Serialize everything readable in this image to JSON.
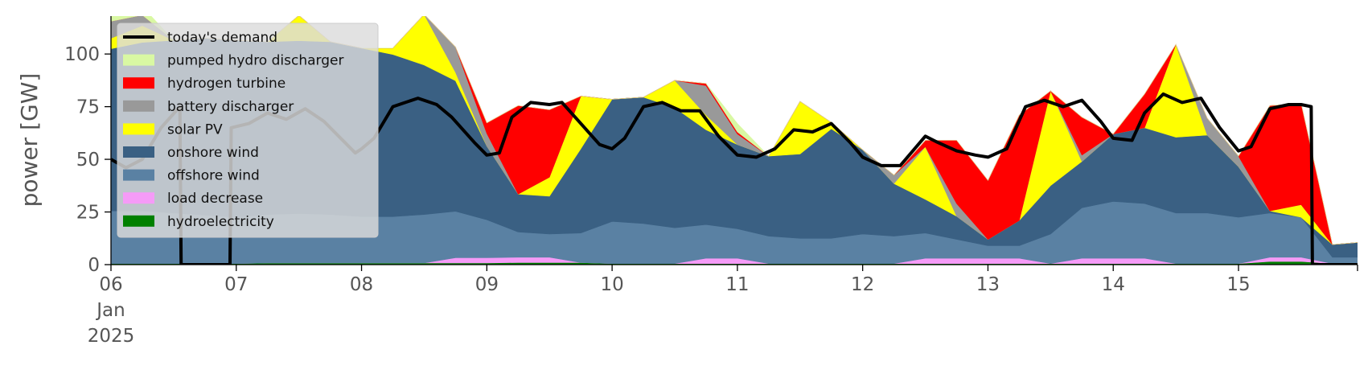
{
  "chart_data": {
    "type": "area",
    "stacked": true,
    "ylabel": "power [GW]",
    "ylim": [
      0,
      118
    ],
    "xlim_days": [
      "06",
      "15.95"
    ],
    "yticks": [
      0,
      25,
      50,
      75,
      100
    ],
    "xticks": [
      {
        "label": "06",
        "sub1": "Jan",
        "sub2": "2025"
      },
      {
        "label": "07"
      },
      {
        "label": "08"
      },
      {
        "label": "09"
      },
      {
        "label": "10"
      },
      {
        "label": "11"
      },
      {
        "label": "12"
      },
      {
        "label": "13"
      },
      {
        "label": "14"
      },
      {
        "label": "15"
      }
    ],
    "grid": false,
    "legend_placement": "top-left",
    "x": [
      6.0,
      6.25,
      6.5,
      6.75,
      7.0,
      7.25,
      7.5,
      7.75,
      8.0,
      8.25,
      8.5,
      8.75,
      9.0,
      9.25,
      9.5,
      9.75,
      10.0,
      10.25,
      10.5,
      10.75,
      11.0,
      11.25,
      11.5,
      11.75,
      12.0,
      12.25,
      12.5,
      12.75,
      13.0,
      13.25,
      13.5,
      13.75,
      14.0,
      14.25,
      14.5,
      14.75,
      15.0,
      15.25,
      15.5,
      15.75,
      15.95
    ],
    "series": [
      {
        "name": "hydroelectricity",
        "color": "#008000",
        "values": [
          0.5,
          0.5,
          0.5,
          0.5,
          0.5,
          0.8,
          0.8,
          0.8,
          0.8,
          0.8,
          0.8,
          0.8,
          0.8,
          1,
          1,
          1,
          0.5,
          0.5,
          0.5,
          0.5,
          0.5,
          0.5,
          0.5,
          0.5,
          0.5,
          0.5,
          0.5,
          0.5,
          0.5,
          0.5,
          0.5,
          0.5,
          0.5,
          0.5,
          0.5,
          0.5,
          0.5,
          1.5,
          1.5,
          0.5,
          0.5
        ]
      },
      {
        "name": "load decrease",
        "color": "#f59bf7",
        "values": [
          0,
          0,
          0,
          0,
          0,
          0,
          0,
          0,
          0,
          0,
          0,
          2.5,
          2.5,
          2.5,
          2.5,
          0,
          0,
          0,
          0,
          2.5,
          2.5,
          0,
          0,
          0,
          0,
          0,
          2.5,
          2.5,
          2.5,
          2.5,
          0,
          2.5,
          2.5,
          2.5,
          0,
          0,
          0,
          2,
          2,
          0,
          0
        ]
      },
      {
        "name": "offshore wind",
        "color": "#5a81a3",
        "values": [
          25,
          25,
          24,
          23,
          22,
          23,
          23.5,
          23,
          22,
          22,
          23,
          22,
          18,
          12,
          11,
          14,
          20,
          19,
          17,
          16,
          14,
          13,
          12,
          12,
          14,
          13,
          12,
          9,
          6,
          6,
          14,
          24,
          27,
          26,
          24,
          24,
          22,
          21,
          19,
          3,
          3
        ]
      },
      {
        "name": "onshore wind",
        "color": "#3a6083",
        "values": [
          77,
          80,
          82,
          84,
          84,
          82,
          82,
          82,
          80,
          77,
          71,
          62,
          35,
          18,
          18,
          40,
          58,
          60,
          57,
          45,
          40,
          38,
          40,
          52,
          40,
          25,
          16,
          11,
          3,
          12,
          23,
          22,
          32,
          36,
          36,
          37,
          24,
          1,
          0,
          6,
          7
        ]
      },
      {
        "name": "solar PV",
        "color": "#ffff00",
        "values": [
          5,
          8,
          0,
          0,
          0,
          0,
          12,
          0,
          0,
          3,
          24,
          4,
          0,
          0,
          9,
          25,
          0,
          0,
          13,
          7,
          0,
          0,
          25,
          3,
          0,
          0,
          25,
          0,
          0,
          0,
          45,
          0,
          0,
          0,
          44,
          0,
          0,
          0,
          6,
          0,
          0
        ]
      },
      {
        "name": "battery discharger",
        "color": "#999999",
        "values": [
          8,
          5,
          0,
          0,
          0,
          0,
          0,
          0,
          0,
          0,
          0,
          12,
          6,
          0,
          0,
          0,
          0,
          0,
          0,
          14,
          5,
          0,
          0,
          0,
          0,
          4,
          0,
          6,
          0,
          0,
          0,
          3,
          0,
          0,
          0,
          8,
          5,
          0,
          0,
          0,
          0
        ]
      },
      {
        "name": "hydrogen turbine",
        "color": "#ff0000",
        "values": [
          0,
          0,
          0,
          0,
          0,
          0,
          0,
          0,
          0,
          0,
          0,
          0,
          5,
          42,
          32,
          0,
          0,
          0,
          0,
          1,
          1,
          0,
          0,
          0,
          0,
          0,
          3,
          30,
          28,
          50,
          0,
          18,
          0,
          16,
          0,
          0,
          0,
          50,
          48,
          0,
          0
        ]
      },
      {
        "name": "pumped hydro discharger",
        "color": "#d9f8a3",
        "values": [
          6,
          4,
          0,
          0,
          0,
          0,
          0,
          0,
          0,
          0,
          0,
          0,
          0,
          0,
          0,
          0,
          0,
          0,
          0,
          0,
          4,
          0,
          0,
          0,
          0,
          0,
          0,
          0,
          0,
          0,
          0,
          0,
          0,
          0,
          0,
          0,
          0,
          0,
          0,
          0,
          0
        ]
      }
    ],
    "demand": {
      "name": "today's demand",
      "color": "#000000",
      "x": [
        6.0,
        6.12,
        6.25,
        6.4,
        6.55,
        6.56,
        6.95,
        6.96,
        7.1,
        7.25,
        7.4,
        7.55,
        7.7,
        7.8,
        7.95,
        8.0,
        8.1,
        8.25,
        8.45,
        8.6,
        8.72,
        8.9,
        9.0,
        9.1,
        9.2,
        9.35,
        9.5,
        9.6,
        9.75,
        9.9,
        10.0,
        10.1,
        10.25,
        10.4,
        10.55,
        10.7,
        10.85,
        11.0,
        11.15,
        11.3,
        11.45,
        11.6,
        11.75,
        11.9,
        12.0,
        12.15,
        12.3,
        12.5,
        12.6,
        12.75,
        12.9,
        13.0,
        13.15,
        13.3,
        13.45,
        13.6,
        13.75,
        13.9,
        14.0,
        14.15,
        14.25,
        14.4,
        14.55,
        14.7,
        14.85,
        15.0,
        15.1,
        15.25,
        15.4,
        15.5,
        15.58,
        15.59,
        15.95
      ],
      "values": [
        50,
        46,
        50,
        65,
        75,
        0,
        0,
        65,
        67,
        72,
        69,
        74,
        68,
        62,
        53,
        55,
        60,
        75,
        79,
        76,
        70,
        58,
        52,
        53,
        70,
        77,
        76,
        77,
        67,
        57,
        55,
        60,
        75,
        77,
        73,
        73,
        61,
        52,
        51,
        55,
        64,
        63,
        67,
        58,
        51,
        47,
        47,
        61,
        58,
        54,
        52,
        51,
        55,
        75,
        78,
        75,
        78,
        68,
        60,
        59,
        72,
        81,
        77,
        79,
        65,
        54,
        56,
        74,
        76,
        76,
        75,
        0,
        0
      ]
    },
    "legend": [
      "today's demand",
      "pumped hydro discharger",
      "hydrogen turbine",
      "battery discharger",
      "solar PV",
      "onshore wind",
      "offshore wind",
      "load decrease",
      "hydroelectricity"
    ]
  }
}
